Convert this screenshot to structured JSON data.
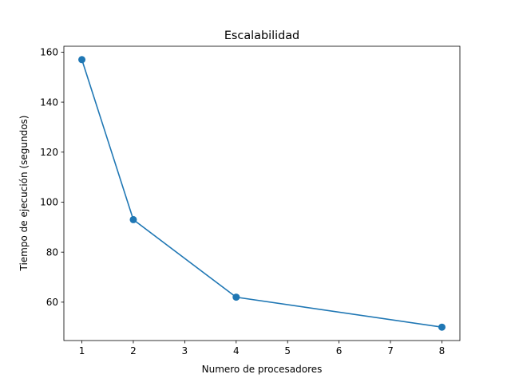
{
  "chart_data": {
    "type": "line",
    "title": "Escalabilidad",
    "xlabel": "Numero de procesadores",
    "ylabel": "Tiempo de ejecución (segundos)",
    "x": [
      1,
      2,
      4,
      8
    ],
    "y": [
      157,
      93,
      62,
      50
    ],
    "xlim": [
      0.65,
      8.35
    ],
    "ylim": [
      44.65,
      162.35
    ],
    "xticks": [
      1,
      2,
      3,
      4,
      5,
      6,
      7,
      8
    ],
    "yticks": [
      60,
      80,
      100,
      120,
      140,
      160
    ],
    "marker": "circle",
    "grid": false,
    "legend": "none",
    "line_color": "#1f77b4"
  }
}
